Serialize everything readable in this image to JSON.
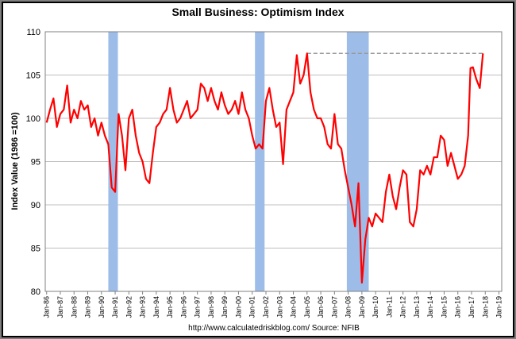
{
  "chart_data": {
    "type": "line",
    "title": "Small Business: Optimism Index",
    "y_label": "Index Value (1986 =100)",
    "source": "http://www.calculatedriskblog.com/  Source: NFIB",
    "ylim": [
      80,
      110
    ],
    "yticks": [
      80,
      85,
      90,
      95,
      100,
      105,
      110
    ],
    "grid": true,
    "xlim": [
      1985.9,
      2019.2
    ],
    "xticks": [
      {
        "value": 1986,
        "label": "Jan-86"
      },
      {
        "value": 1987,
        "label": "Jan-87"
      },
      {
        "value": 1988,
        "label": "Jan-88"
      },
      {
        "value": 1989,
        "label": "Jan-89"
      },
      {
        "value": 1990,
        "label": "Jan-90"
      },
      {
        "value": 1991,
        "label": "Jan-91"
      },
      {
        "value": 1992,
        "label": "Jan-92"
      },
      {
        "value": 1993,
        "label": "Jan-93"
      },
      {
        "value": 1994,
        "label": "Jan-94"
      },
      {
        "value": 1995,
        "label": "Jan-95"
      },
      {
        "value": 1996,
        "label": "Jan-96"
      },
      {
        "value": 1997,
        "label": "Jan-97"
      },
      {
        "value": 1998,
        "label": "Jan-98"
      },
      {
        "value": 1999,
        "label": "Jan-99"
      },
      {
        "value": 2000,
        "label": "Jan-00"
      },
      {
        "value": 2001,
        "label": "Jan-01"
      },
      {
        "value": 2002,
        "label": "Jan-02"
      },
      {
        "value": 2003,
        "label": "Jan-03"
      },
      {
        "value": 2004,
        "label": "Jan-04"
      },
      {
        "value": 2005,
        "label": "Jan-05"
      },
      {
        "value": 2006,
        "label": "Jan-06"
      },
      {
        "value": 2007,
        "label": "Jan-07"
      },
      {
        "value": 2008,
        "label": "Jan-08"
      },
      {
        "value": 2009,
        "label": "Jan-09"
      },
      {
        "value": 2010,
        "label": "Jan-10"
      },
      {
        "value": 2011,
        "label": "Jan-11"
      },
      {
        "value": 2012,
        "label": "Jan-12"
      },
      {
        "value": 2013,
        "label": "Jan-13"
      },
      {
        "value": 2014,
        "label": "Jan-14"
      },
      {
        "value": 2015,
        "label": "Jan-15"
      },
      {
        "value": 2016,
        "label": "Jan-16"
      },
      {
        "value": 2017,
        "label": "Jan-17"
      },
      {
        "value": 2018,
        "label": "Jan-18"
      },
      {
        "value": 2019,
        "label": "Jan-19"
      }
    ],
    "recessions": [
      [
        1990.5,
        1991.2
      ],
      [
        2001.2,
        2001.9
      ],
      [
        2007.9,
        2009.5
      ]
    ],
    "recession_color": "#9dbde8",
    "reference_line": {
      "value": 107.5,
      "x": [
        2005.0,
        2017.83
      ],
      "color": "#999999"
    },
    "x": [
      1986,
      1986.25,
      1986.5,
      1986.75,
      1987,
      1987.25,
      1987.5,
      1987.75,
      1988,
      1988.25,
      1988.5,
      1988.75,
      1989,
      1989.25,
      1989.5,
      1989.75,
      1990,
      1990.25,
      1990.5,
      1990.75,
      1991,
      1991.25,
      1991.5,
      1991.75,
      1992,
      1992.25,
      1992.5,
      1992.75,
      1993,
      1993.25,
      1993.5,
      1993.75,
      1994,
      1994.25,
      1994.5,
      1994.75,
      1995,
      1995.25,
      1995.5,
      1995.75,
      1996,
      1996.25,
      1996.5,
      1996.75,
      1997,
      1997.25,
      1997.5,
      1997.75,
      1998,
      1998.25,
      1998.5,
      1998.75,
      1999,
      1999.25,
      1999.5,
      1999.75,
      2000,
      2000.25,
      2000.5,
      2000.75,
      2001,
      2001.25,
      2001.5,
      2001.75,
      2002,
      2002.25,
      2002.5,
      2002.75,
      2003,
      2003.25,
      2003.5,
      2003.75,
      2004,
      2004.25,
      2004.5,
      2004.75,
      2005,
      2005.25,
      2005.5,
      2005.75,
      2006,
      2006.25,
      2006.5,
      2006.75,
      2007,
      2007.25,
      2007.5,
      2007.75,
      2008,
      2008.25,
      2008.5,
      2008.75,
      2009,
      2009.25,
      2009.5,
      2009.75,
      2010,
      2010.25,
      2010.5,
      2010.75,
      2011,
      2011.25,
      2011.5,
      2011.75,
      2012,
      2012.25,
      2012.5,
      2012.75,
      2013,
      2013.25,
      2013.5,
      2013.75,
      2014,
      2014.25,
      2014.5,
      2014.75,
      2015,
      2015.25,
      2015.5,
      2015.75,
      2016,
      2016.25,
      2016.5,
      2016.75,
      2016.92,
      2017.1,
      2017.35,
      2017.6,
      2017.83
    ],
    "series": [
      {
        "name": "Optimism Index",
        "color": "#ff0000",
        "values": [
          99.5,
          101,
          102.3,
          99,
          100.5,
          101,
          103.8,
          99.5,
          101,
          100,
          102,
          101,
          101.5,
          99,
          100,
          98,
          99.5,
          98,
          97,
          92,
          91.5,
          100.5,
          98,
          94,
          100,
          101,
          98,
          96,
          95,
          93,
          92.5,
          96,
          99,
          99.5,
          100.5,
          101,
          103.5,
          101,
          99.5,
          100,
          101,
          102,
          100,
          100.5,
          101,
          104,
          103.5,
          102,
          103.5,
          102,
          101,
          103,
          101.5,
          100.5,
          101,
          102,
          100.5,
          103,
          101,
          100,
          98,
          96.5,
          97,
          96.5,
          102,
          103.5,
          101,
          99,
          99.5,
          94.7,
          101,
          102,
          103,
          107.3,
          104,
          105,
          107.5,
          103,
          101,
          100,
          100,
          99,
          97,
          96.5,
          100.5,
          97,
          96.5,
          94,
          92,
          90,
          87.5,
          92.5,
          81,
          86,
          88.5,
          87.5,
          89,
          88.5,
          88,
          91.5,
          93.5,
          91,
          89.5,
          92,
          94,
          93.5,
          88,
          87.5,
          89.5,
          94,
          93.5,
          94.5,
          93.5,
          95.5,
          95.5,
          98,
          97.5,
          94.5,
          96,
          94.5,
          93,
          93.5,
          94.5,
          98,
          105.8,
          105.9,
          104.5,
          103.5,
          107.5
        ]
      }
    ]
  }
}
